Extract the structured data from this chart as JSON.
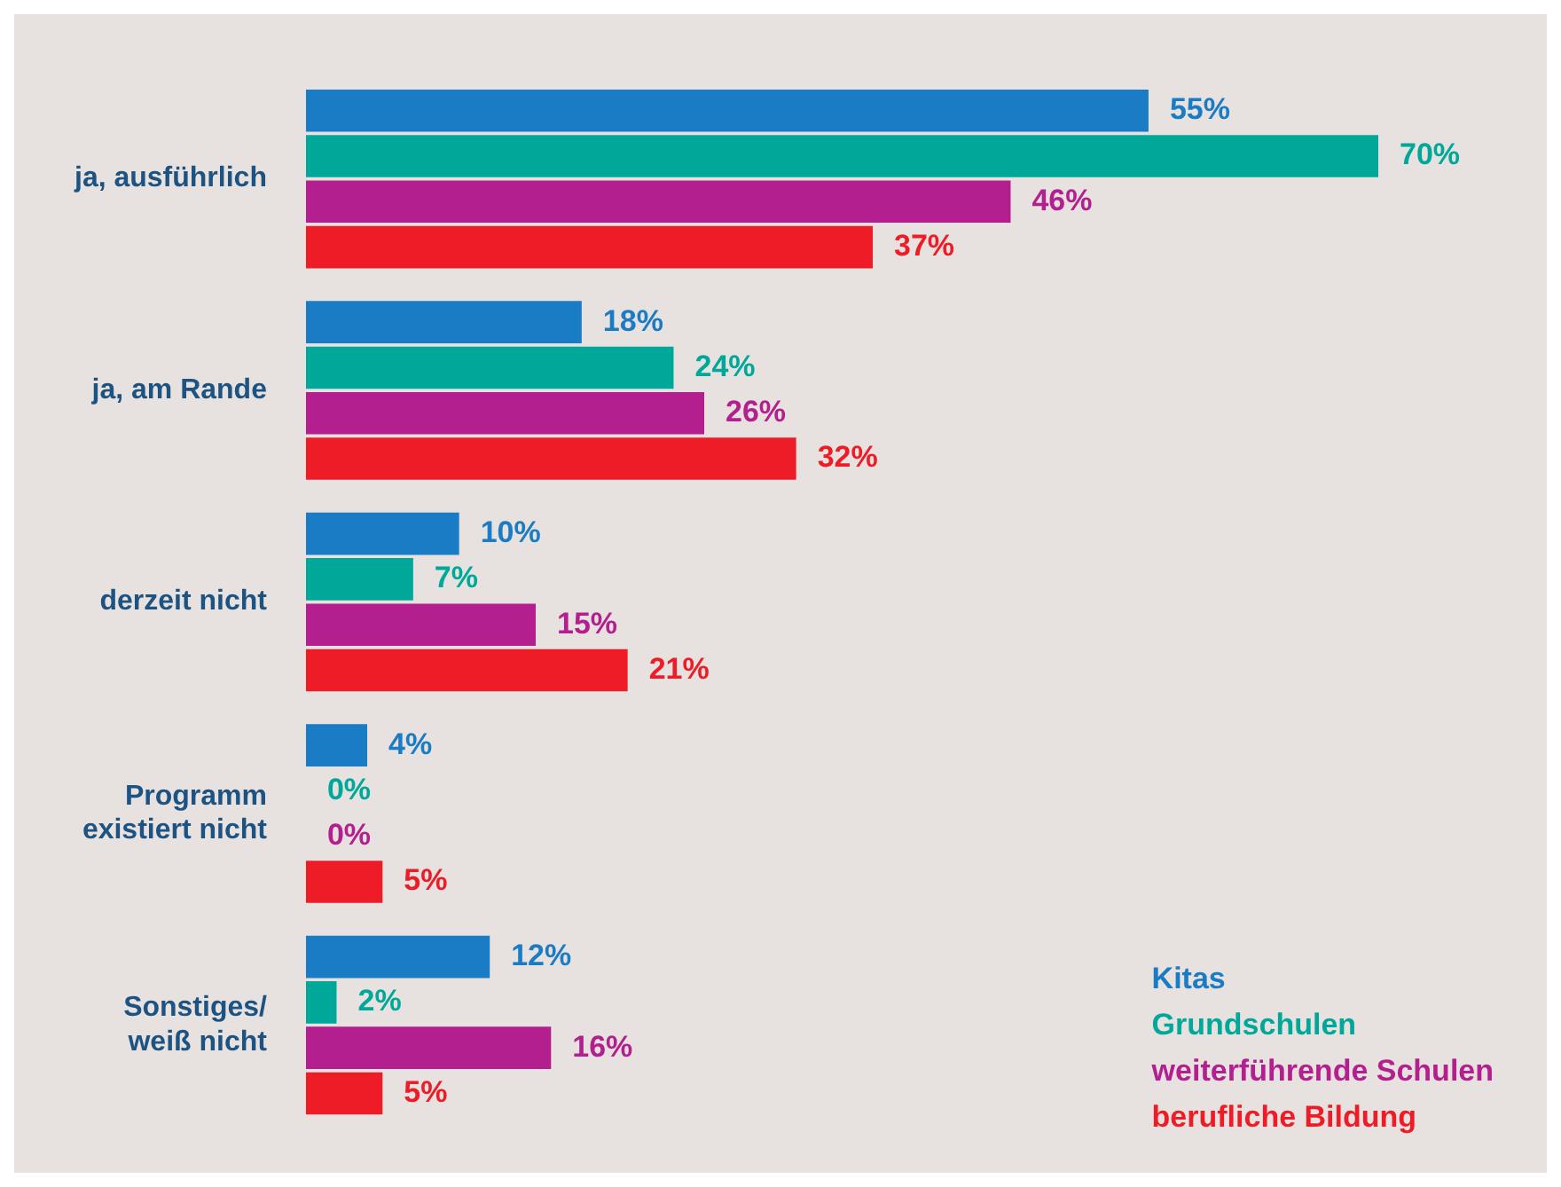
{
  "chart_data": {
    "type": "bar",
    "orientation": "horizontal",
    "categories": [
      "ja, ausführlich",
      "ja, am Rande",
      "derzeit nicht",
      "Programm existiert nicht",
      "Sonstiges/ weiß nicht"
    ],
    "series": [
      {
        "name": "Kitas",
        "color": "#1a7cc4",
        "values": [
          55,
          18,
          10,
          4,
          12
        ],
        "value_labels": [
          "55%",
          "18%",
          "10%",
          "4%",
          "12%"
        ]
      },
      {
        "name": "Grundschulen",
        "color": "#00a89a",
        "values": [
          70,
          24,
          7,
          0,
          2
        ],
        "value_labels": [
          "70%",
          "24%",
          "7%",
          "0%",
          "2%"
        ]
      },
      {
        "name": "weiterführende Schulen",
        "color": "#b31f8e",
        "values": [
          46,
          26,
          15,
          0,
          16
        ],
        "value_labels": [
          "46%",
          "26%",
          "15%",
          "0%",
          "16%"
        ]
      },
      {
        "name": "berufliche Bildung",
        "color": "#ee1c27",
        "values": [
          37,
          32,
          21,
          5,
          5
        ],
        "value_labels": [
          "37%",
          "32%",
          "21%",
          "5%",
          "5%"
        ]
      }
    ],
    "legend": "bottom right"
  }
}
